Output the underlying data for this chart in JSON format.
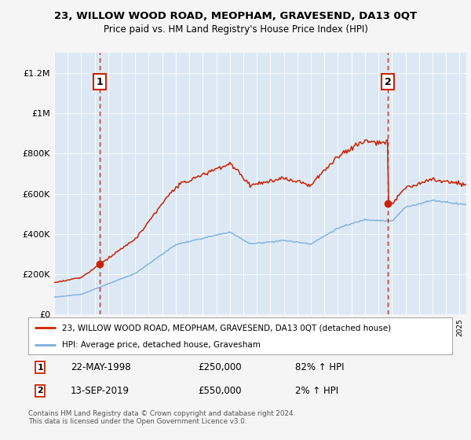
{
  "title": "23, WILLOW WOOD ROAD, MEOPHAM, GRAVESEND, DA13 0QT",
  "subtitle": "Price paid vs. HM Land Registry's House Price Index (HPI)",
  "legend_line1": "23, WILLOW WOOD ROAD, MEOPHAM, GRAVESEND, DA13 0QT (detached house)",
  "legend_line2": "HPI: Average price, detached house, Gravesham",
  "sale1_date": "22-MAY-1998",
  "sale1_price": "£250,000",
  "sale1_hpi": "82% ↑ HPI",
  "sale1_year": 1998.38,
  "sale1_value": 250000,
  "sale2_date": "13-SEP-2019",
  "sale2_price": "£550,000",
  "sale2_hpi": "2% ↑ HPI",
  "sale2_year": 2019.71,
  "sale2_value": 550000,
  "hpi_color": "#7aaddc",
  "price_color": "#cc2200",
  "fig_bg": "#f5f5f5",
  "plot_bg": "#dce9f5",
  "grid_color": "#ffffff",
  "ylim": [
    0,
    1300000
  ],
  "xlim_start": 1995,
  "xlim_end": 2025.5,
  "footer": "Contains HM Land Registry data © Crown copyright and database right 2024.\nThis data is licensed under the Open Government Licence v3.0."
}
